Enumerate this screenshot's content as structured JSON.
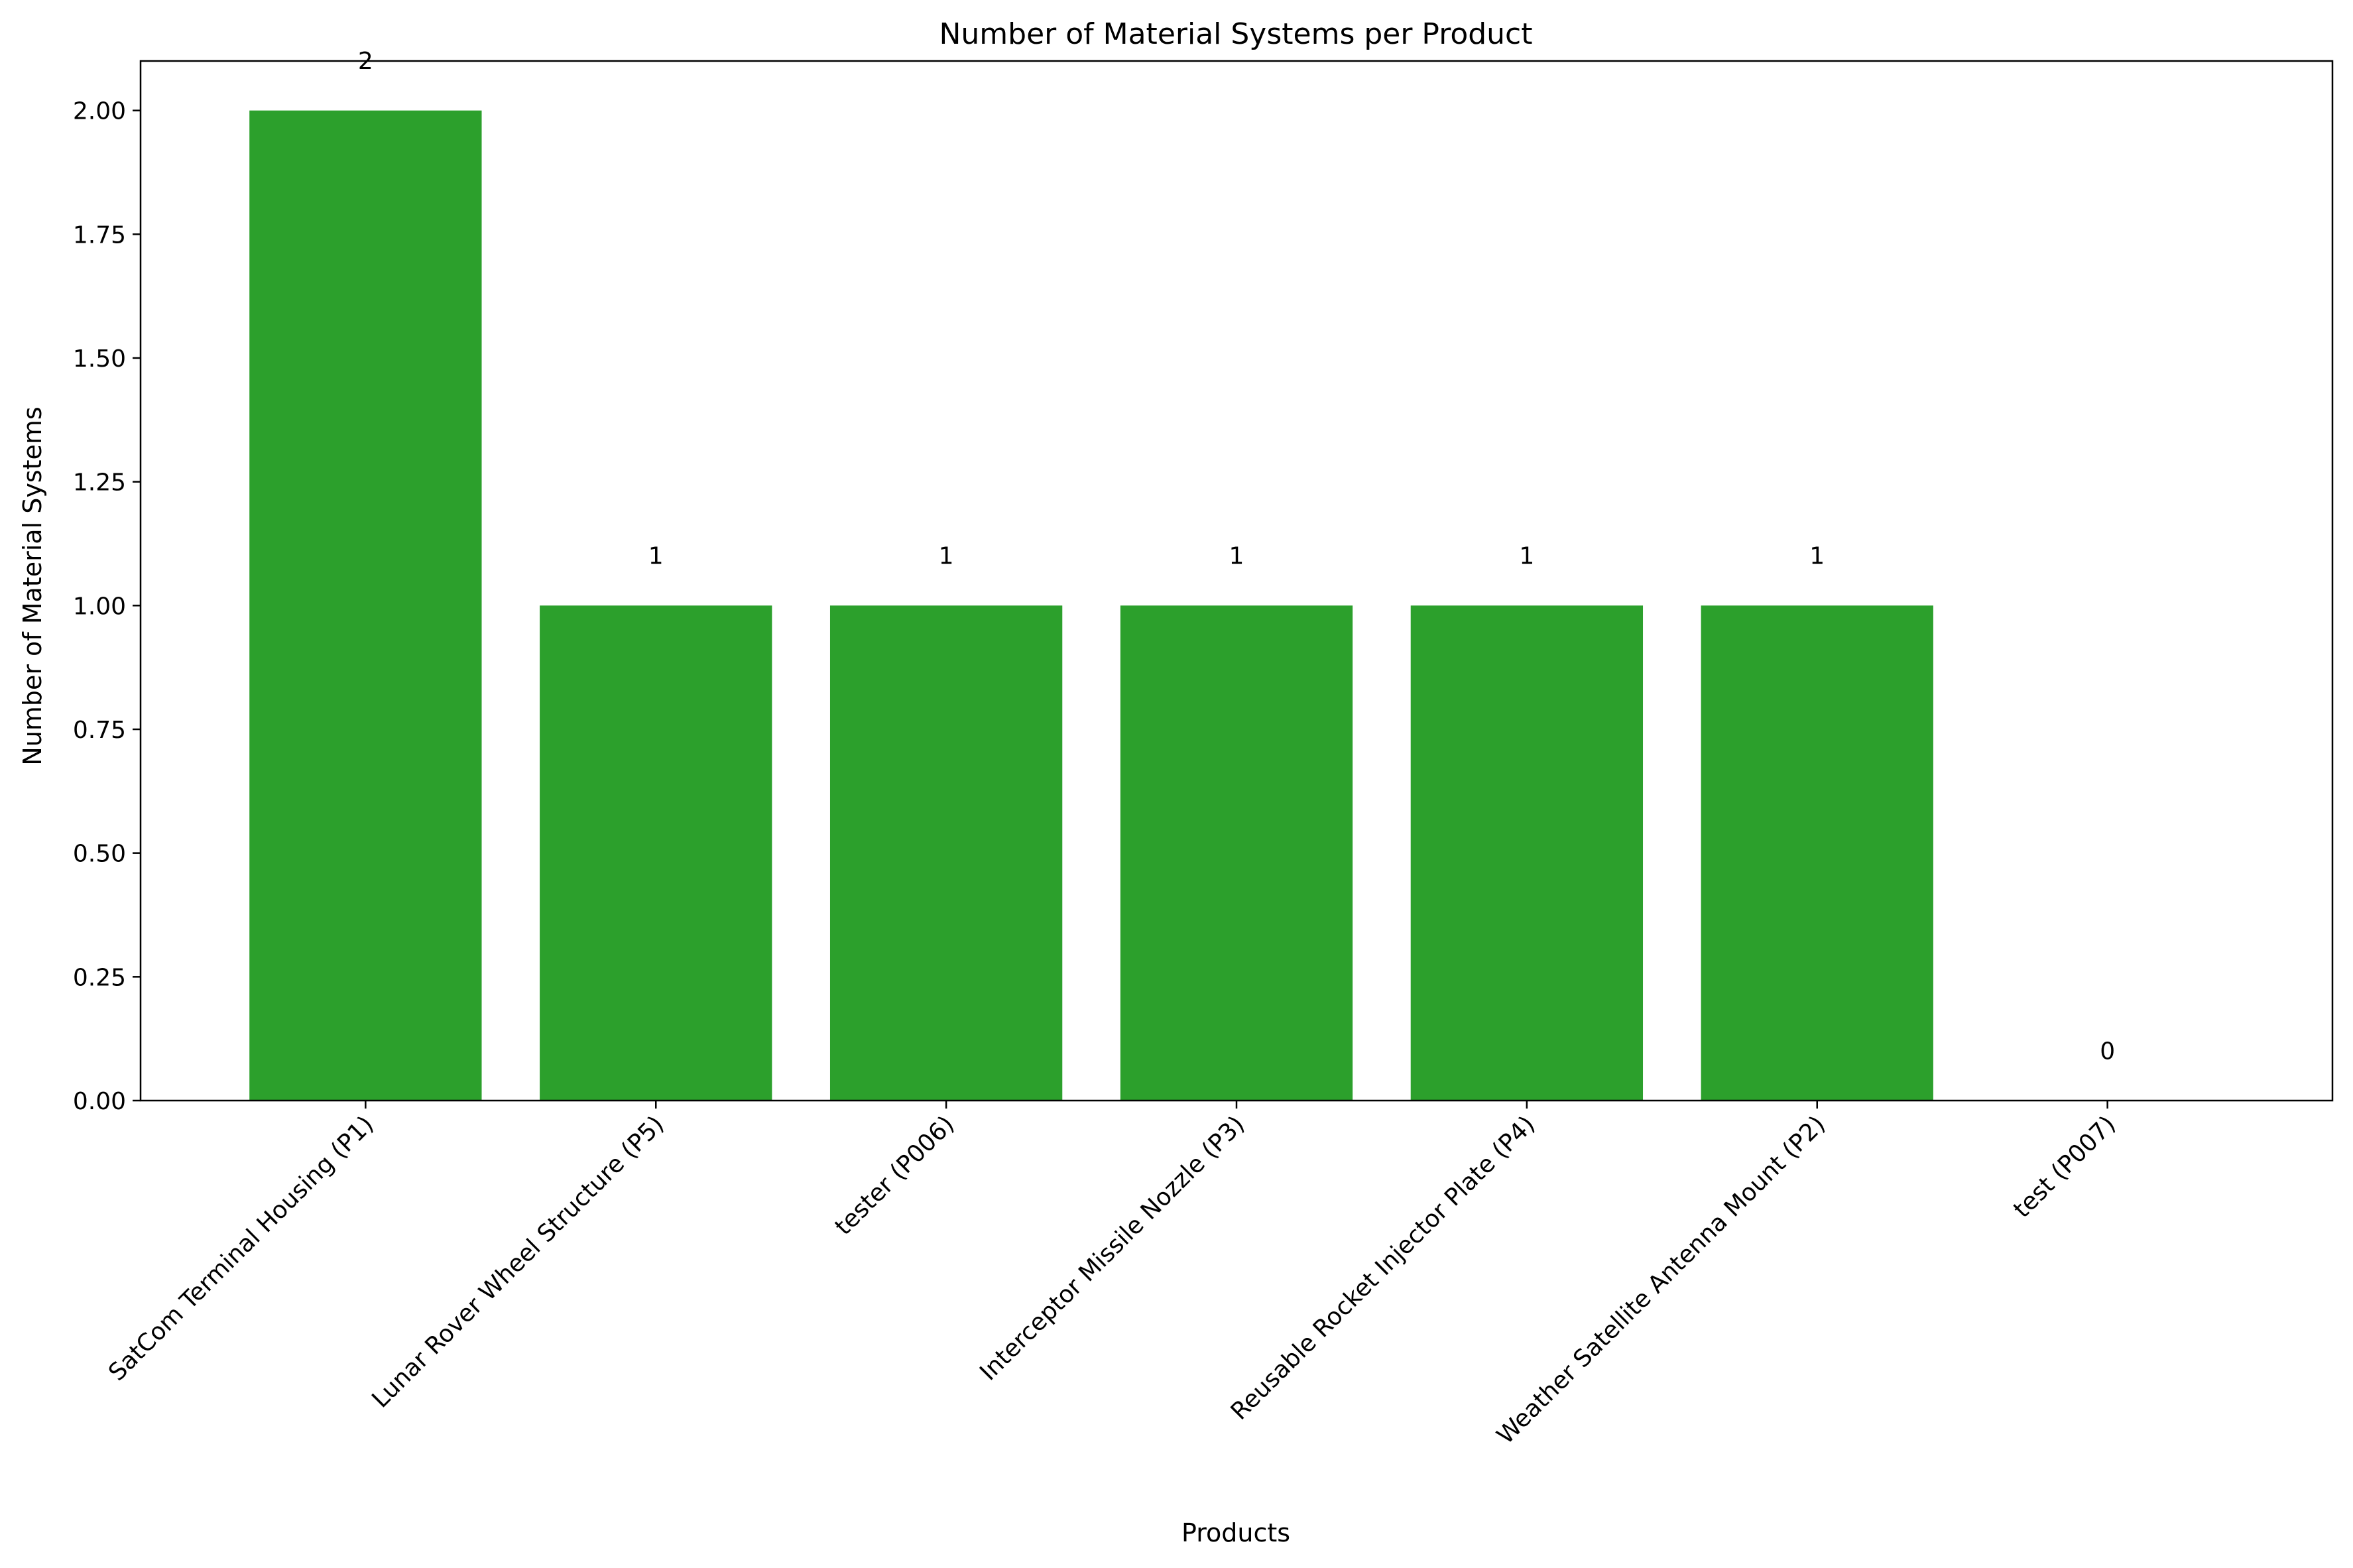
{
  "chart_data": {
    "type": "bar",
    "title": "Number of Material Systems per Product",
    "xlabel": "Products",
    "ylabel": "Number of Material Systems",
    "categories": [
      "SatCom Terminal Housing (P1)",
      "Lunar Rover Wheel Structure (P5)",
      "tester (P006)",
      "Interceptor Missile Nozzle (P3)",
      "Reusable Rocket Injector Plate (P4)",
      "Weather Satellite Antenna Mount (P2)",
      "test (P007)"
    ],
    "values": [
      2,
      1,
      1,
      1,
      1,
      1,
      0
    ],
    "value_labels": [
      "2",
      "1",
      "1",
      "1",
      "1",
      "1",
      "0"
    ],
    "ylim": [
      0,
      2.1
    ],
    "yticks": [
      0,
      0.25,
      0.5,
      0.75,
      1.0,
      1.25,
      1.5,
      1.75,
      2.0
    ],
    "ytick_labels": [
      "0.00",
      "0.25",
      "0.50",
      "0.75",
      "1.00",
      "1.25",
      "1.50",
      "1.75",
      "2.00"
    ],
    "bar_color": "#2ca02c",
    "grid": false,
    "legend": "none"
  }
}
